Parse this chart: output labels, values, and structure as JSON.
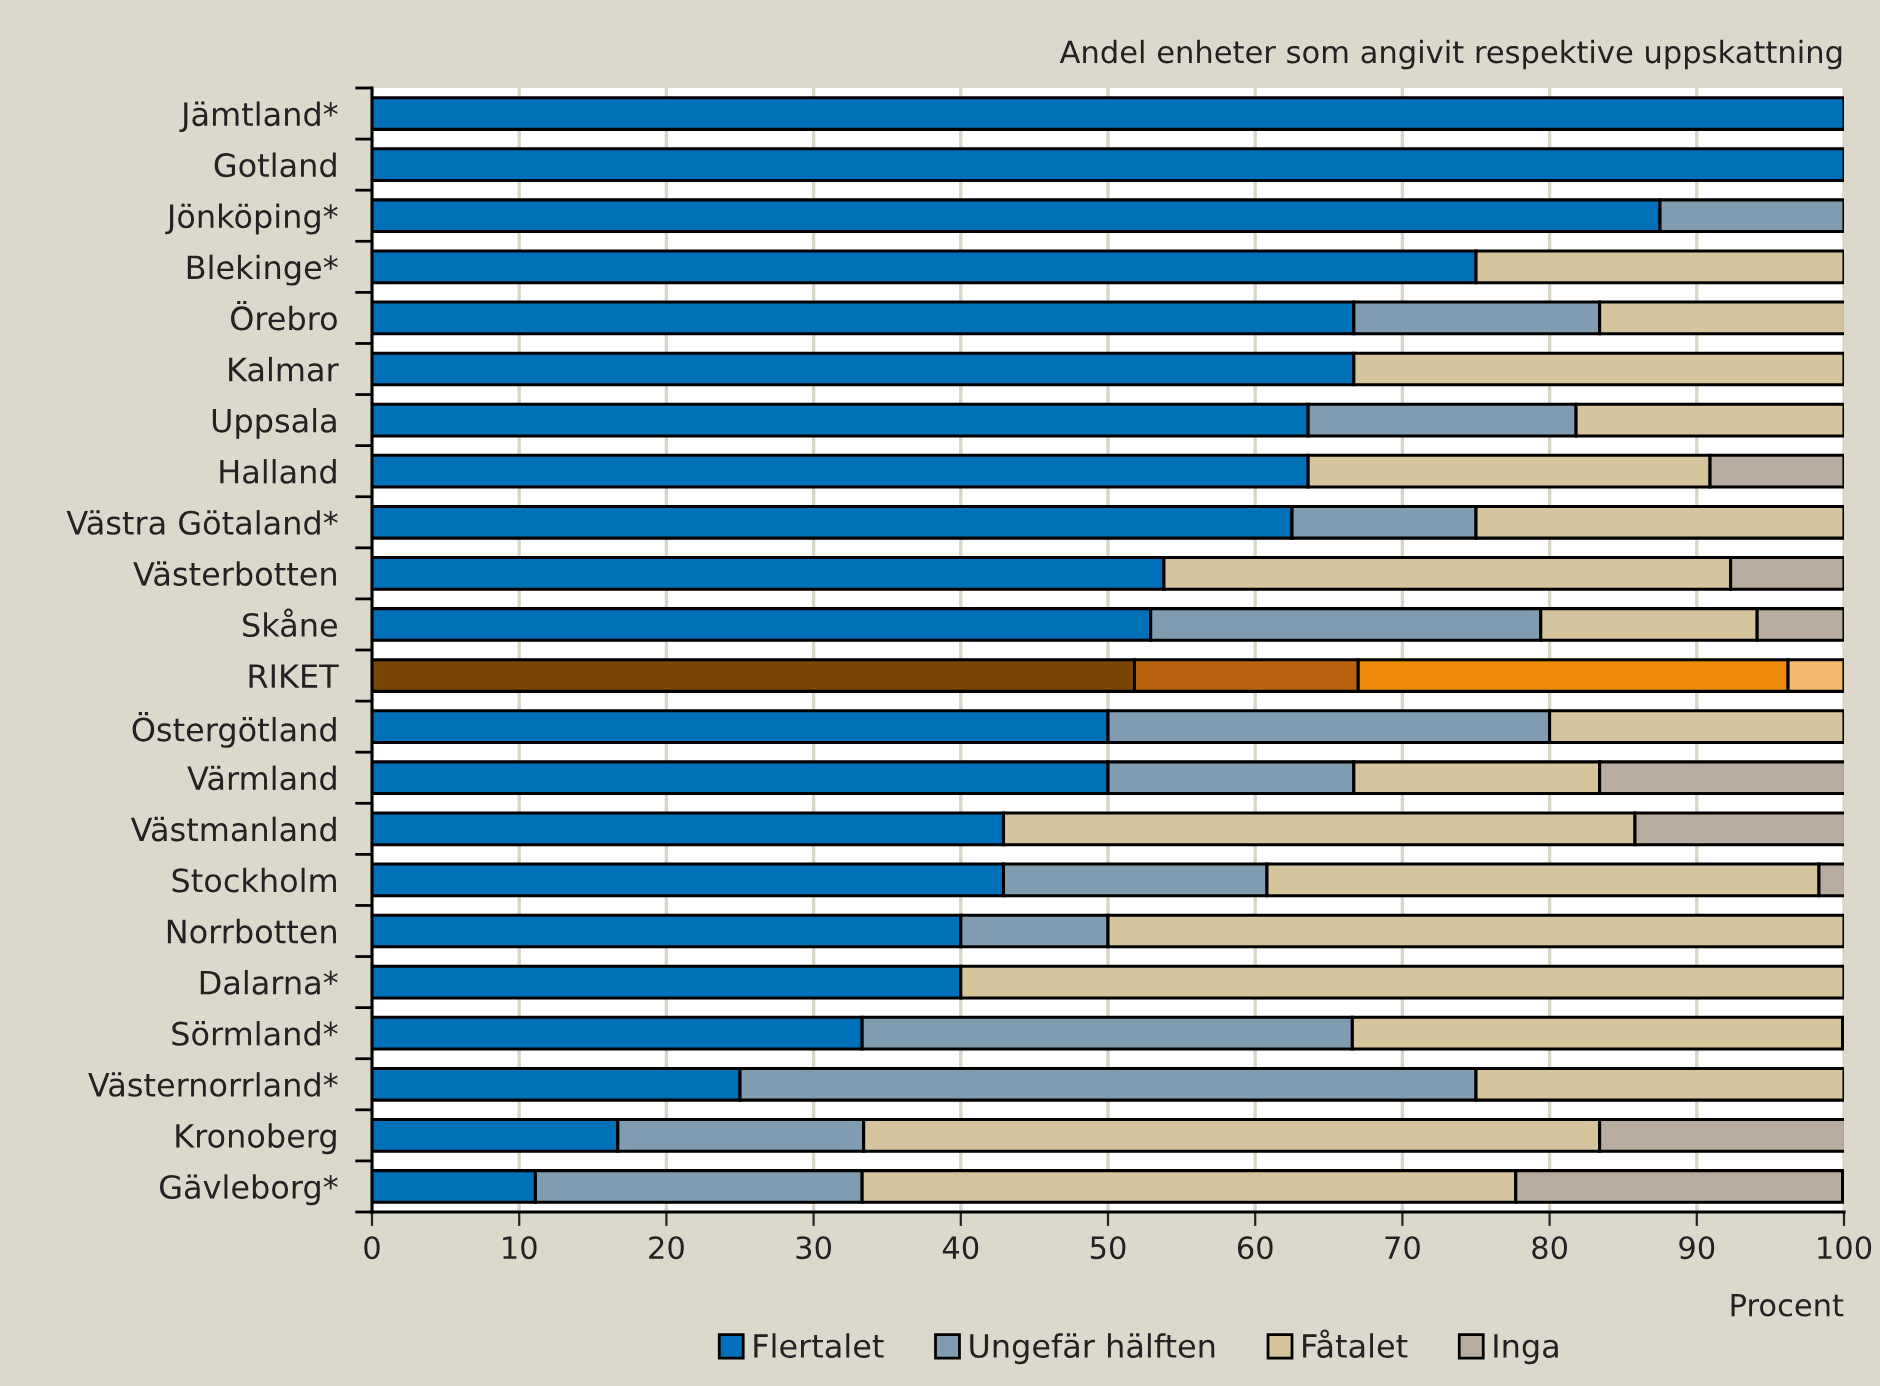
{
  "chart_data": {
    "type": "bar",
    "orientation": "horizontal",
    "stacked": true,
    "title": "Andel enheter som angivit respektive uppskattning",
    "xlabel": "Procent",
    "categories": [
      "Jämtland*",
      "Gotland",
      "Jönköping*",
      "Blekinge*",
      "Örebro",
      "Kalmar",
      "Uppsala",
      "Halland",
      "Västra Götaland*",
      "Västerbotten",
      "Skåne",
      "RIKET",
      "Östergötland",
      "Värmland",
      "Västmanland",
      "Stockholm",
      "Norrbotten",
      "Dalarna*",
      "Sörmland*",
      "Västernorrland*",
      "Kronoberg",
      "Gävleborg*"
    ],
    "series": [
      {
        "name": "Flertalet",
        "color": "#0070b8",
        "colors": [
          "#0070b8",
          "#0070b8",
          "#0070b8",
          "#0070b8",
          "#0070b8",
          "#0070b8",
          "#0070b8",
          "#0070b8",
          "#0070b8",
          "#0070b8",
          "#0070b8",
          "#7a4606",
          "#0070b8",
          "#0070b8",
          "#0070b8",
          "#0070b8",
          "#0070b8",
          "#0070b8",
          "#0070b8",
          "#0070b8",
          "#0070b8",
          "#0070b8"
        ],
        "values": [
          100,
          100,
          87.5,
          75,
          66.7,
          66.7,
          63.6,
          63.6,
          62.5,
          53.8,
          52.9,
          51.8,
          50,
          50,
          42.9,
          42.9,
          40,
          40,
          33.3,
          25,
          16.7,
          11.1
        ]
      },
      {
        "name": "Ungefär hälften",
        "color": "#7f9cb0",
        "colors": [
          "#7f9cb0",
          "#7f9cb0",
          "#7f9cb0",
          "#7f9cb0",
          "#7f9cb0",
          "#7f9cb0",
          "#7f9cb0",
          "#7f9cb0",
          "#7f9cb0",
          "#7f9cb0",
          "#7f9cb0",
          "#b8640f",
          "#7f9cb0",
          "#7f9cb0",
          "#7f9cb0",
          "#7f9cb0",
          "#7f9cb0",
          "#7f9cb0",
          "#7f9cb0",
          "#7f9cb0",
          "#7f9cb0",
          "#7f9cb0"
        ],
        "values": [
          0,
          0,
          12.5,
          0,
          16.7,
          0,
          18.2,
          0,
          12.5,
          0,
          26.5,
          15.2,
          30,
          16.7,
          0,
          17.9,
          10,
          0,
          33.3,
          50,
          16.7,
          22.2
        ]
      },
      {
        "name": "Fåtalet",
        "color": "#d6c49c",
        "colors": [
          "#d6c49c",
          "#d6c49c",
          "#d6c49c",
          "#d6c49c",
          "#d6c49c",
          "#d6c49c",
          "#d6c49c",
          "#d6c49c",
          "#d6c49c",
          "#d6c49c",
          "#d6c49c",
          "#f08a0a",
          "#d6c49c",
          "#d6c49c",
          "#d6c49c",
          "#d6c49c",
          "#d6c49c",
          "#d6c49c",
          "#d6c49c",
          "#d6c49c",
          "#d6c49c",
          "#d6c49c"
        ],
        "values": [
          0,
          0,
          0,
          25,
          16.7,
          33.3,
          18.2,
          27.3,
          25,
          38.5,
          14.7,
          29.2,
          20,
          16.7,
          42.9,
          37.5,
          50,
          60,
          33.3,
          25,
          50,
          44.4
        ]
      },
      {
        "name": "Inga",
        "color": "#b8aba0",
        "colors": [
          "#b8aba0",
          "#b8aba0",
          "#b8aba0",
          "#b8aba0",
          "#b8aba0",
          "#b8aba0",
          "#b8aba0",
          "#b8aba0",
          "#b8aba0",
          "#b8aba0",
          "#b8aba0",
          "#f5b86c",
          "#b8aba0",
          "#b8aba0",
          "#b8aba0",
          "#b8aba0",
          "#b8aba0",
          "#b8aba0",
          "#b8aba0",
          "#b8aba0",
          "#b8aba0",
          "#b8aba0"
        ],
        "values": [
          0,
          0,
          0,
          0,
          0,
          0,
          0,
          9.1,
          0,
          7.7,
          5.9,
          3.8,
          0,
          16.7,
          14.3,
          1.8,
          0,
          0,
          0,
          0,
          16.7,
          22.2
        ]
      }
    ],
    "xlim": [
      0,
      100
    ],
    "xticks": [
      0,
      10,
      20,
      30,
      40,
      50,
      60,
      70,
      80,
      90,
      100
    ],
    "grid": "x",
    "legend": "bottom"
  }
}
